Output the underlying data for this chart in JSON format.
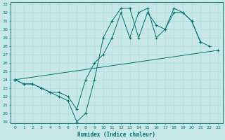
{
  "xlabel": "Humidex (Indice chaleur)",
  "bg_color": "#c8e8e8",
  "line_color": "#007070",
  "grid_color": "#a8d8d8",
  "ylim": [
    19,
    33
  ],
  "xlim": [
    -0.5,
    23.5
  ],
  "yticks": [
    19,
    20,
    21,
    22,
    23,
    24,
    25,
    26,
    27,
    28,
    29,
    30,
    31,
    32,
    33
  ],
  "xticks": [
    0,
    1,
    2,
    3,
    4,
    5,
    6,
    7,
    8,
    9,
    10,
    11,
    12,
    13,
    14,
    15,
    16,
    17,
    18,
    19,
    20,
    21,
    22,
    23
  ],
  "series": [
    {
      "x": [
        0,
        1,
        2,
        3,
        4,
        5,
        6,
        7,
        8,
        9,
        10,
        11,
        12,
        13,
        14,
        15,
        16,
        17,
        18,
        19,
        20,
        21
      ],
      "y": [
        24,
        23.5,
        23.5,
        23,
        22.5,
        22,
        21.5,
        19,
        20,
        24,
        29,
        31,
        32.5,
        32.5,
        29,
        32,
        30.5,
        30,
        32.5,
        32,
        31,
        28.5
      ]
    },
    {
      "x": [
        0,
        1,
        2,
        3,
        4,
        5,
        6,
        7,
        8,
        9,
        10,
        11,
        12,
        13,
        14,
        15,
        16,
        17,
        18,
        19,
        20,
        21,
        22
      ],
      "y": [
        24,
        23.5,
        23.5,
        23,
        22.5,
        22.5,
        22,
        20.5,
        24,
        26,
        27,
        29,
        32,
        29,
        32,
        32.5,
        29,
        30,
        32,
        32,
        31,
        28.5,
        28
      ]
    },
    {
      "x": [
        0,
        23
      ],
      "y": [
        24,
        27.5
      ]
    }
  ]
}
